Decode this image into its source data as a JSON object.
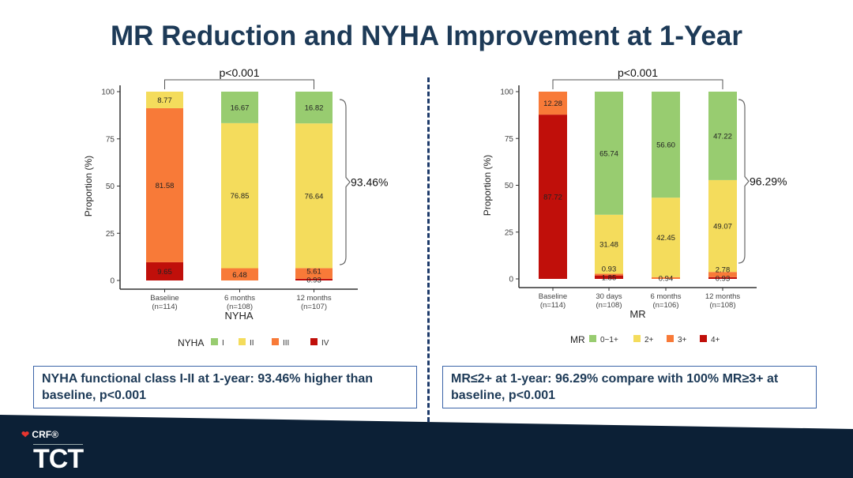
{
  "title": "MR Reduction and NYHA Improvement at 1-Year",
  "colors": {
    "green": "#98cc70",
    "yellow": "#f4dc5c",
    "orange": "#f87a38",
    "red": "#c00f0a"
  },
  "chart_data": [
    {
      "type": "bar",
      "stacked": true,
      "xlabel": "NYHA",
      "ylabel": "Proportion (%)",
      "ylim": [
        0,
        100
      ],
      "yticks": [
        "0",
        "25",
        "50",
        "75",
        "100"
      ],
      "categories": [
        "Baseline",
        "6 months",
        "12 months"
      ],
      "category_n": [
        "(n=114)",
        "(n=108)",
        "(n=107)"
      ],
      "legend_title": "NYHA",
      "legend_position": "bottom",
      "series": [
        {
          "name": "IV",
          "color": "#c00f0a",
          "values": [
            9.65,
            0,
            0.93
          ]
        },
        {
          "name": "III",
          "color": "#f87a38",
          "values": [
            81.58,
            6.48,
            5.61
          ]
        },
        {
          "name": "II",
          "color": "#f4dc5c",
          "values": [
            8.77,
            76.85,
            76.64
          ]
        },
        {
          "name": "I",
          "color": "#98cc70",
          "values": [
            0,
            16.67,
            16.82
          ]
        }
      ],
      "legend_order": [
        "I",
        "II",
        "III",
        "IV"
      ],
      "pvalue": "p<0.001",
      "brace_label": "93.46%"
    },
    {
      "type": "bar",
      "stacked": true,
      "xlabel": "MR",
      "ylabel": "Proportion (%)",
      "ylim": [
        0,
        100
      ],
      "yticks": [
        "0",
        "25",
        "50",
        "75",
        "100"
      ],
      "categories": [
        "Baseline",
        "30 days",
        "6 months",
        "12 months"
      ],
      "category_n": [
        "(n=114)",
        "(n=108)",
        "(n=106)",
        "(n=108)"
      ],
      "legend_title": "MR",
      "legend_position": "bottom",
      "series": [
        {
          "name": "4+",
          "color": "#c00f0a",
          "values": [
            87.72,
            1.85,
            0,
            0.93
          ]
        },
        {
          "name": "3+",
          "color": "#f87a38",
          "values": [
            12.28,
            0.93,
            0.94,
            2.78
          ]
        },
        {
          "name": "2+",
          "color": "#f4dc5c",
          "values": [
            0,
            31.48,
            42.45,
            49.07
          ]
        },
        {
          "name": "0~1+",
          "color": "#98cc70",
          "values": [
            0,
            65.74,
            56.6,
            47.22
          ]
        }
      ],
      "legend_order": [
        "0~1+",
        "2+",
        "3+",
        "4+"
      ],
      "pvalue": "p<0.001",
      "brace_label": "96.29%"
    }
  ],
  "boxes": {
    "left": "NYHA functional class  I-II at 1-year: 93.46% higher than baseline, p<0.001",
    "right": "MR≤2+ at 1-year: 96.29% compare with 100% MR≥3+ at baseline, p<0.001"
  },
  "footer": {
    "crf": "CRF®",
    "tct": "TCT"
  }
}
